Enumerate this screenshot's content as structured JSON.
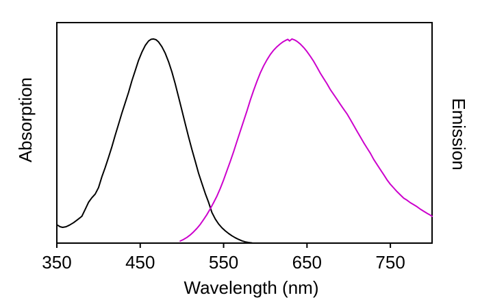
{
  "figure": {
    "background": "#ffffff",
    "axis_color": "#000000"
  },
  "labels": {
    "x_axis": "Wavelength (nm)",
    "y_left": "Absorption",
    "y_right": "Emission"
  },
  "chart_data": {
    "type": "line",
    "title": "",
    "xlabel": "Wavelength (nm)",
    "ylabel_left": "Absorption",
    "ylabel_right": "Emission",
    "x_range": [
      350,
      800
    ],
    "x_ticks": [
      350,
      450,
      550,
      650,
      750
    ],
    "y_range": [
      0,
      1.08
    ],
    "y_ticks": [],
    "grid": false,
    "legend": "none",
    "border": "full-box",
    "series": [
      {
        "name": "Absorption",
        "color": "#000000",
        "axis": "left",
        "units": "normalized",
        "x": [
          350,
          354,
          357,
          361,
          365,
          370,
          375,
          380,
          384,
          388,
          392,
          396,
          400,
          404,
          408,
          412,
          416,
          420,
          424,
          428,
          432,
          436,
          440,
          444,
          448,
          452,
          456,
          460,
          463,
          466,
          469,
          472,
          476,
          480,
          484,
          488,
          492,
          496,
          500,
          504,
          508,
          512,
          516,
          520,
          524,
          528,
          532,
          536,
          540,
          544,
          548,
          552,
          556,
          560,
          564,
          568,
          572,
          576,
          580,
          584
        ],
        "y": [
          0.09,
          0.08,
          0.077,
          0.08,
          0.088,
          0.1,
          0.115,
          0.131,
          0.165,
          0.2,
          0.222,
          0.24,
          0.272,
          0.325,
          0.37,
          0.42,
          0.472,
          0.528,
          0.582,
          0.637,
          0.688,
          0.738,
          0.795,
          0.845,
          0.895,
          0.935,
          0.968,
          0.99,
          0.998,
          1.0,
          0.996,
          0.985,
          0.962,
          0.93,
          0.888,
          0.838,
          0.78,
          0.715,
          0.65,
          0.585,
          0.52,
          0.458,
          0.4,
          0.342,
          0.292,
          0.243,
          0.2,
          0.15,
          0.118,
          0.094,
          0.075,
          0.06,
          0.047,
          0.036,
          0.026,
          0.018,
          0.011,
          0.006,
          0.003,
          0.001
        ]
      },
      {
        "name": "Emission",
        "color": "#cc00cc",
        "axis": "right",
        "units": "normalized",
        "x": [
          498,
          502,
          506,
          510,
          514,
          518,
          522,
          526,
          530,
          534,
          538,
          542,
          546,
          550,
          554,
          558,
          562,
          566,
          570,
          574,
          578,
          582,
          586,
          590,
          594,
          598,
          602,
          606,
          610,
          614,
          618,
          621,
          624,
          627,
          629,
          632,
          635,
          638,
          642,
          646,
          650,
          654,
          658,
          662,
          666,
          670,
          674,
          678,
          682,
          686,
          690,
          694,
          698,
          702,
          706,
          710,
          714,
          718,
          722,
          726,
          730,
          734,
          738,
          742,
          746,
          750,
          754,
          758,
          762,
          766,
          770,
          774,
          778,
          782,
          786,
          790,
          794,
          798,
          800
        ],
        "y": [
          0.01,
          0.018,
          0.028,
          0.04,
          0.055,
          0.072,
          0.092,
          0.115,
          0.14,
          0.168,
          0.198,
          0.23,
          0.268,
          0.31,
          0.355,
          0.4,
          0.448,
          0.498,
          0.548,
          0.598,
          0.648,
          0.7,
          0.748,
          0.793,
          0.833,
          0.868,
          0.898,
          0.924,
          0.945,
          0.962,
          0.976,
          0.985,
          0.992,
          0.998,
          0.99,
          1.0,
          0.995,
          0.988,
          0.975,
          0.958,
          0.938,
          0.915,
          0.89,
          0.862,
          0.832,
          0.806,
          0.78,
          0.752,
          0.728,
          0.704,
          0.68,
          0.656,
          0.633,
          0.605,
          0.577,
          0.548,
          0.52,
          0.492,
          0.466,
          0.44,
          0.41,
          0.385,
          0.36,
          0.335,
          0.31,
          0.288,
          0.27,
          0.252,
          0.236,
          0.22,
          0.21,
          0.198,
          0.188,
          0.178,
          0.166,
          0.156,
          0.146,
          0.137,
          0.131
        ]
      }
    ]
  }
}
